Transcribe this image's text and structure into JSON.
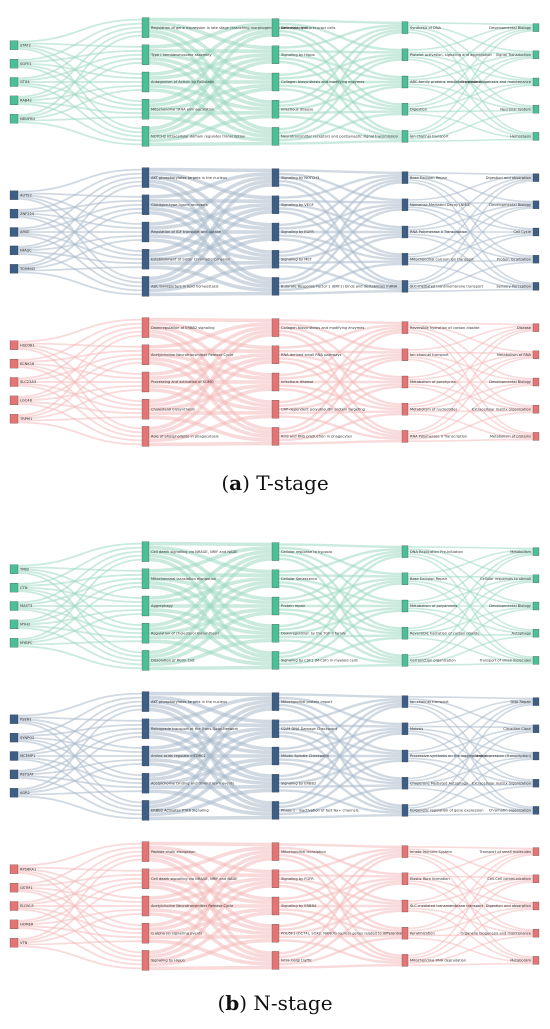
{
  "figure": {
    "panels": [
      {
        "caption_letter": "a",
        "caption_text": "T-stage",
        "groups": [
          {
            "color": "#5bbf9f",
            "node_color": "#4dbf97",
            "link_color": "#9ed8c3",
            "genes": [
              "STAT2",
              "SGFE1",
              "GTX4",
              "RAB42",
              "NDUFB4"
            ],
            "pathways": [
              "Regulation of gene expression in late stage (branching morphogenesis) pancreatic bud precursor cells",
              "Type I hemidesmosome assembly",
              "Antagonism of Activin by Follistatin",
              "Mitochondrial tRNA aminoacylation",
              "NOTCH2 intracellular domain regulates transcription"
            ],
            "categories": [
              "Defective pyrin",
              "Signaling by Hippo",
              "Collagen biosynthesis and modifying enzymes",
              "Infectious disease",
              "Neurotransmitter receptors and postsynaptic signal transmission"
            ],
            "subcategories": [
              "Synthesis of DNA",
              "Platelet activation, signaling and aggregation",
              "ABC-family proteins mediated transport",
              "Digestion",
              "Ion channel transport"
            ],
            "toplevels": [
              "Developmental Biology",
              "Signal Transduction",
              "Organelle biogenesis and maintenance",
              "Neuronal System",
              "Hemostasis"
            ]
          },
          {
            "color": "#4a6a90",
            "node_color": "#3e5f85",
            "link_color": "#a9bacb",
            "genes": [
              "AUTS2",
              "ZNF224",
              "ARSE",
              "NFASC",
              "TCMM42"
            ],
            "pathways": [
              "AKT phosphorylates targets in the nucleus",
              "Glucagon-type ligand receptors",
              "Regulation of IGF transport and uptake",
              "Establishment of Sister Chromatid Cohesion",
              "ABC transporters in lipid homeostasis"
            ],
            "categories": [
              "Signaling by NOTCH3",
              "Signaling by VEGF",
              "Signaling by EGFR",
              "Signaling by MET",
              "Butyrate Response Factor 1 (BRF1) binds and destabilizes mRNA"
            ],
            "subcategories": [
              "Base Excision Repair",
              "Nonsense-Mediated Decay (NMD)",
              "RNA Polymerase II Transcription",
              "Mitochondrial calcium ion transport",
              "SLC-mediated transmembrane transport"
            ],
            "toplevels": [
              "Digestion and absorption",
              "Developmental Biology",
              "Cell Cycle",
              "Protein localization",
              "Sensory Perception"
            ]
          },
          {
            "color": "#e98a8a",
            "node_color": "#e47575",
            "link_color": "#f4bcbc",
            "genes": [
              "HSD3B1",
              "KCNK18",
              "SLC22A3",
              "LGC48",
              "TRPM1"
            ],
            "pathways": [
              "Downregulation of ERBB2 signaling",
              "Acetylcholine Neurotransmitter Release Cycle",
              "Processing and activation of SUMO",
              "Cholesterol biosynthesis",
              "Role of phospholipids in phagocytosis"
            ],
            "categories": [
              "Collagen biosynthesis and modifying enzymes",
              "RNA-derived small RNA pathways",
              "Infectious disease",
              "CRP-dependent polyubiquitin protein targeting",
              "ROS and RNS production in phagocytes"
            ],
            "subcategories": [
              "Reversible hydration of carbon dioxide",
              "Ion channel transport",
              "Metabolism of porphyrins",
              "Metabolism of nucleotides",
              "RNA Polymerase II Transcription"
            ],
            "toplevels": [
              "Disease",
              "Metabolism of RNA",
              "Developmental Biology",
              "Extracellular matrix organization",
              "Metabolism of proteins"
            ]
          }
        ]
      },
      {
        "caption_letter": "b",
        "caption_text": "N-stage",
        "groups": [
          {
            "color": "#5bbf9f",
            "node_color": "#4dbf97",
            "link_color": "#9ed8c3",
            "genes": [
              "TPB2",
              "CTN",
              "MAST3",
              "MYH2",
              "MYBPC"
            ],
            "pathways": [
              "Cell death signalling via NRAGE, NRIF and NADE",
              "Mitochondrial translation elongation",
              "Aggrephagy",
              "Regulation of cholesterol biosynthesis",
              "Dissolution of Fibrin Clot"
            ],
            "categories": [
              "Cellular response to hypoxia",
              "Cellular Senescence",
              "Protein repair",
              "Downregulation by the TGF-b family",
              "Signaling by CSF1 (M-CSF) in myeloid cells"
            ],
            "subcategories": [
              "DNA Replication Pre-Initiation",
              "Base Excision Repair",
              "Metabolism of polyamines",
              "Reversible hydration of carbon dioxide",
              "Cell junction organization"
            ],
            "toplevels": [
              "Metabolism",
              "Cellular responses to stimuli",
              "Developmental Biology",
              "Autophagy",
              "Transport of small molecules"
            ]
          },
          {
            "color": "#4a6a90",
            "node_color": "#3e5f85",
            "link_color": "#a9bacb",
            "genes": [
              "PSEN1",
              "SYNPO2",
              "MCEMP1",
              "RETSAT",
              "AGR2"
            ],
            "pathways": [
              "AKT phosphorylates targets in the nucleus",
              "Retrograde transport at the Trans-Golgi-Network",
              "Amino acids regulate mTORC1",
              "Acetylcholine binding and downstream events",
              "ERBB2 Activates PTK6 Signaling"
            ],
            "categories": [
              "Mitochondrial protein import",
              "G2/M DNA Damage Checkpoint",
              "Mitotic Spindle Checkpoint",
              "Signaling by ERBB2",
              "Phase 1 - inactivation of fast Na+ channels"
            ],
            "subcategories": [
              "Ion channel transport",
              "Meiosis",
              "Processive synthesis on the lagging strand",
              "Chaperone Mediated Autophagy",
              "Epigenetic regulation of gene expression"
            ],
            "toplevels": [
              "DNA Repair",
              "Circadian Clock",
              "Gene expression (Transcription)",
              "Extracellular matrix organization",
              "Chromatin organization"
            ]
          },
          {
            "color": "#e98a8a",
            "node_color": "#e47575",
            "link_color": "#f4bcbc",
            "genes": [
              "RPS6KA1",
              "GSTM1",
              "ELOVL5",
              "HOMER",
              "VTN"
            ],
            "pathways": [
              "Peptide chain elongation",
              "Cell death signalling via NRAGE, NRIF and NADE",
              "Acetylcholine Neurotransmitter Release Cycle",
              "G alpha (s) signalling events",
              "Signaling by Hippo"
            ],
            "categories": [
              "Mitochondrial translation",
              "Signaling by FGFR",
              "Signaling by ERBB4",
              "POU5F1 (OCT4), SOX2, NANOG repress genes related to differentiation",
              "Intra-Golgi traffic"
            ],
            "subcategories": [
              "Innate Immune System",
              "Elastic fibre formation",
              "SLC-mediated transmembrane transport",
              "Keratinization",
              "Mitochondrial RNA degradation"
            ],
            "toplevels": [
              "Transport of small molecules",
              "Cell-Cell communication",
              "Digestion and absorption",
              "Organelle biogenesis and maintenance",
              "Metabolism"
            ]
          }
        ]
      }
    ]
  }
}
